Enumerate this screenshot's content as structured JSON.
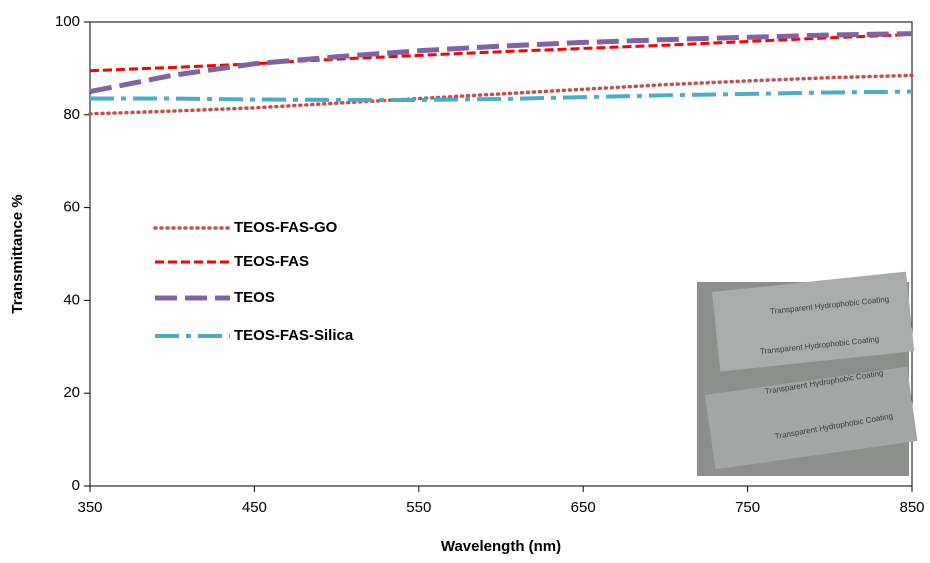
{
  "chart_data": {
    "type": "line",
    "x_label": "Wavelength (nm)",
    "y_label": "Transmittance %",
    "x": [
      350,
      400,
      450,
      500,
      550,
      600,
      650,
      700,
      750,
      800,
      850
    ],
    "series": [
      {
        "name": "TEOS-FAS-GO",
        "color": "#c0504d",
        "dash": "dotted",
        "values": [
          80.2,
          80.8,
          81.5,
          82.5,
          83.5,
          84.5,
          85.5,
          86.5,
          87.3,
          88.0,
          88.5
        ]
      },
      {
        "name": "TEOS-FAS",
        "color": "#ff0000",
        "dash": "dashed",
        "values": [
          89.5,
          90.2,
          91.0,
          92.0,
          92.8,
          93.6,
          94.3,
          95.0,
          95.8,
          96.6,
          97.3
        ]
      },
      {
        "name": "TEOS",
        "color": "#8064a2",
        "dash": "long-dash",
        "values": [
          85.0,
          88.5,
          91.0,
          92.5,
          93.8,
          94.8,
          95.6,
          96.2,
          96.7,
          97.2,
          97.5
        ]
      },
      {
        "name": "TEOS-FAS-Silica",
        "color": "#4bacc6",
        "dash": "dash-dot",
        "values": [
          83.5,
          83.5,
          83.3,
          83.2,
          83.2,
          83.4,
          83.8,
          84.2,
          84.5,
          84.8,
          85.0
        ]
      }
    ],
    "xlim": [
      350,
      850
    ],
    "xticks": [
      350,
      450,
      550,
      650,
      750,
      850
    ],
    "ylim": [
      0,
      100
    ],
    "yticks": [
      0,
      20,
      40,
      60,
      80,
      100
    ],
    "legend_position": "left",
    "inset_texts": [
      "Transparent Hydrophobic Coating",
      "Transparent Hydrophobic Coating",
      "Transparent Hydrophobic Coating",
      "Transparent Hydrophobic Coating"
    ]
  }
}
